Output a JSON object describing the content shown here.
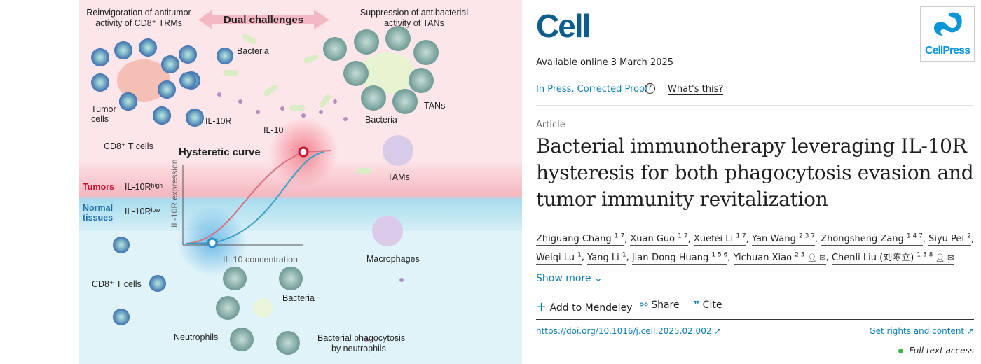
{
  "figure": {
    "top_left_caption": [
      "Reinvigoration of antitumor",
      "activity of CD8⁺ TRMs"
    ],
    "dual_challenges": "Dual challenges",
    "top_right_caption": [
      "Suppression of antibacterial",
      "activity of TANs"
    ],
    "bacteria_top": "Bacteria",
    "tumor_cells": [
      "Tumor",
      "cells"
    ],
    "il10r": "IL-10R",
    "il10": "IL-10",
    "cd8_top": "CD8⁺ T cells",
    "bacteria_tan": "Bacteria",
    "tans": "TANs",
    "hysteretic": "Hysteretic curve",
    "tams": "TAMs",
    "tumors": "Tumors",
    "il10r_high": "IL-10Rʰⁱᵍʰ",
    "normal_tissues": [
      "Normal",
      "tissues"
    ],
    "il10r_low": "IL-10Rˡᵒʷ",
    "y_axis": "IL-10R expression",
    "x_axis": "IL-10 concentration",
    "macrophages": "Macrophages",
    "cd8_bottom": "CD8⁺ T cells",
    "bacteria_bottom": "Bacteria",
    "neutrophils": "Neutrophils",
    "phago": [
      "Bacterial phagocytosis",
      "by neutrophils"
    ],
    "colors": {
      "tumor": "#fde3e8",
      "normal": "#dff3f8",
      "red": "#c8102e",
      "blue": "#2a8fc0"
    }
  },
  "journal": {
    "logo": "Cell",
    "publisher_logo": "CellPress"
  },
  "available": "Available online 3 March 2025",
  "status": {
    "label": "In Press, Corrected Proof",
    "help": "What's this?"
  },
  "article_type": "Article",
  "title": "Bacterial immunotherapy leveraging IL-10R hysteresis for both phagocytosis evasion and tumor immunity revitalization",
  "authors": [
    {
      "name": "Zhiguang Chang",
      "sup": "1 7"
    },
    {
      "name": "Xuan Guo",
      "sup": "1 7"
    },
    {
      "name": "Xuefei Li",
      "sup": "1 7"
    },
    {
      "name": "Yan Wang",
      "sup": "2 3 7"
    },
    {
      "name": "Zhongsheng Zang",
      "sup": "1 4 7"
    },
    {
      "name": "Siyu Pei",
      "sup": "2"
    },
    {
      "name": "Weiqi Lu",
      "sup": "1"
    },
    {
      "name": "Yang Li",
      "sup": "1"
    },
    {
      "name": "Jian-Dong Huang",
      "sup": "1 5 6"
    },
    {
      "name": "Yichuan Xiao",
      "sup": "2 3",
      "icons": true
    },
    {
      "name": "Chenli Liu (刘陈立)",
      "sup": "1 3 8",
      "icons": true
    }
  ],
  "show_more": "Show more",
  "actions": {
    "mendeley": "Add to Mendeley",
    "share": "Share",
    "cite": "Cite"
  },
  "doi": "https://doi.org/10.1016/j.cell.2025.02.002",
  "rights": "Get rights and content",
  "access": "Full text access"
}
